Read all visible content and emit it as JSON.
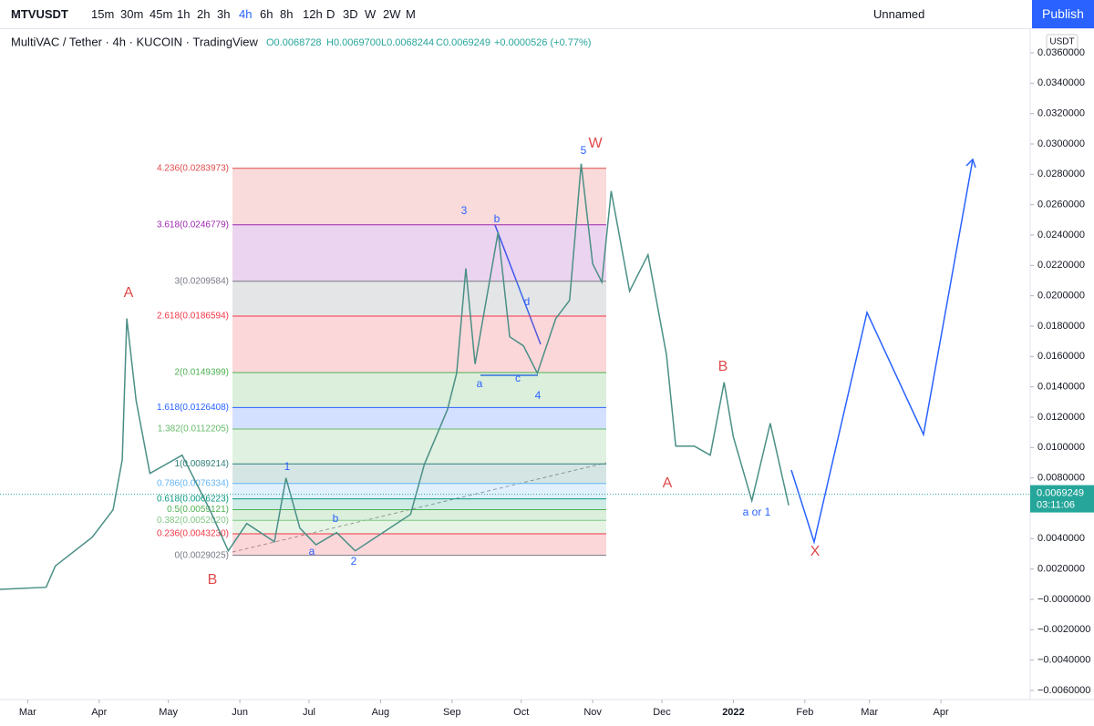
{
  "toolbar": {
    "symbol": "MTVUSDT",
    "intervals": [
      "15m",
      "30m",
      "45m",
      "1h",
      "2h",
      "3h",
      "4h",
      "6h",
      "8h",
      "12h",
      "D",
      "3D",
      "W",
      "2W",
      "M"
    ],
    "active_interval": 6,
    "layout_name": "Unnamed",
    "publish": "Publish"
  },
  "chart_data": {
    "type": "line",
    "legend": {
      "title": "MultiVAC / Tether · 4h · KUCOIN · TradingView",
      "open": "O0.0068728",
      "high": "H0.0069700",
      "low": "L0.0068244",
      "close": "C0.0069249",
      "change": "+0.0000526 (+0.77%)"
    },
    "currency": "USDT",
    "last_price": {
      "value": 0.0069249,
      "label": "0.0069249"
    },
    "countdown": "03:11:06",
    "series": [
      {
        "name": "MTVUSDT",
        "color": "#4a8f86",
        "x": [
          -12,
          8,
          12,
          28,
          37,
          41,
          43,
          47,
          53,
          67,
          79,
          87,
          95,
          107,
          112,
          118,
          125,
          134,
          142,
          154,
          166,
          172,
          182,
          186,
          190,
          194,
          204,
          209,
          215,
          221,
          229,
          235,
          240,
          245,
          249,
          253,
          261,
          269,
          277,
          281,
          289,
          296,
          302,
          306,
          314,
          322,
          330
        ],
        "values": [
          0.00066,
          0.0008,
          0.0022,
          0.0041,
          0.0059,
          0.0092,
          0.0185,
          0.0131,
          0.0083,
          0.0095,
          0.0059,
          0.0032,
          0.005,
          0.0038,
          0.008,
          0.0047,
          0.0036,
          0.0044,
          0.0032,
          0.0044,
          0.0056,
          0.0089,
          0.0125,
          0.0149,
          0.0218,
          0.0155,
          0.0242,
          0.0173,
          0.0167,
          0.0149,
          0.0185,
          0.0197,
          0.0287,
          0.0221,
          0.0209,
          0.0269,
          0.0203,
          0.0227,
          0.0161,
          0.0101,
          0.0101,
          0.0095,
          0.0143,
          0.0107,
          0.0065,
          0.0116,
          0.0062
        ]
      }
    ],
    "xlim": [
      -12,
      434.7
    ],
    "xticks": [
      {
        "value": 0,
        "label": "Mar"
      },
      {
        "value": 31,
        "label": "Apr"
      },
      {
        "value": 61,
        "label": "May"
      },
      {
        "value": 92,
        "label": "Jun"
      },
      {
        "value": 122,
        "label": "Jul"
      },
      {
        "value": 153,
        "label": "Aug"
      },
      {
        "value": 184,
        "label": "Sep"
      },
      {
        "value": 214,
        "label": "Oct"
      },
      {
        "value": 245,
        "label": "Nov"
      },
      {
        "value": 275,
        "label": "Dec"
      },
      {
        "value": 306,
        "label": "2022"
      },
      {
        "value": 337,
        "label": "Feb"
      },
      {
        "value": 365,
        "label": "Mar"
      },
      {
        "value": 396,
        "label": "Apr"
      }
    ],
    "ylim": [
      -0.00672,
      0.03738
    ],
    "yticks": [
      {
        "value": 0.036,
        "label": "0.0360000"
      },
      {
        "value": 0.034,
        "label": "0.0340000"
      },
      {
        "value": 0.032,
        "label": "0.0320000"
      },
      {
        "value": 0.03,
        "label": "0.0300000"
      },
      {
        "value": 0.028,
        "label": "0.0280000"
      },
      {
        "value": 0.026,
        "label": "0.0260000"
      },
      {
        "value": 0.024,
        "label": "0.0240000"
      },
      {
        "value": 0.022,
        "label": "0.0220000"
      },
      {
        "value": 0.02,
        "label": "0.0200000"
      },
      {
        "value": 0.018,
        "label": "0.0180000"
      },
      {
        "value": 0.016,
        "label": "0.0160000"
      },
      {
        "value": 0.014,
        "label": "0.0140000"
      },
      {
        "value": 0.012,
        "label": "0.0120000"
      },
      {
        "value": 0.01,
        "label": "0.0100000"
      },
      {
        "value": 0.008,
        "label": "0.0080000"
      },
      {
        "value": 0.006,
        "label": "0.0060000"
      },
      {
        "value": 0.004,
        "label": "0.0040000"
      },
      {
        "value": 0.002,
        "label": "0.0020000"
      },
      {
        "value": 0,
        "label": "−0.0000000"
      },
      {
        "value": -0.002,
        "label": "−0.0020000"
      },
      {
        "value": -0.004,
        "label": "−0.0040000"
      },
      {
        "value": -0.006,
        "label": "−0.0060000"
      }
    ],
    "fib_levels": [
      {
        "value": 0.0283973,
        "label": "4.236(0.0283973)",
        "color": "#e04a4a"
      },
      {
        "value": 0.0246779,
        "label": "3.618(0.0246779)",
        "color": "#9c27b0"
      },
      {
        "value": 0.0209584,
        "label": "3(0.0209584)",
        "color": "#787b86"
      },
      {
        "value": 0.0186594,
        "label": "2.618(0.0186594)",
        "color": "#f23645"
      },
      {
        "value": 0.0149399,
        "label": "2(0.0149399)",
        "color": "#4caf50"
      },
      {
        "value": 0.0126408,
        "label": "1.618(0.0126408)",
        "color": "#2962ff"
      },
      {
        "value": 0.0112205,
        "label": "1.382(0.0112205)",
        "color": "#66bb6a"
      },
      {
        "value": 0.0089214,
        "label": "1(0.0089214)",
        "color": "#2f7f7a"
      },
      {
        "value": 0.0076334,
        "label": "0.786(0.0076334)",
        "color": "#64b5f6"
      },
      {
        "value": 0.0066223,
        "label": "0.618(0.0066223)",
        "color": "#089981"
      },
      {
        "value": 0.0059121,
        "label": "0.5(0.0059121)",
        "color": "#4caf50"
      },
      {
        "value": 0.005202,
        "label": "0.382(0.0052020)",
        "color": "#81c784"
      },
      {
        "value": 0.004323,
        "label": "0.236(0.0043230)",
        "color": "#f23645"
      },
      {
        "value": 0.0029025,
        "label": "0(0.0029025)",
        "color": "#787b86"
      }
    ],
    "annotations": [
      {
        "text": "A",
        "color": "#e04a4a"
      },
      {
        "text": "B",
        "color": "#e04a4a"
      },
      {
        "text": "1",
        "color": "#2962ff"
      },
      {
        "text": "a",
        "color": "#2962ff"
      },
      {
        "text": "b",
        "color": "#2962ff"
      },
      {
        "text": "2",
        "color": "#2962ff"
      },
      {
        "text": "3",
        "color": "#2962ff"
      },
      {
        "text": "b",
        "color": "#2962ff"
      },
      {
        "text": "d",
        "color": "#2962ff"
      },
      {
        "text": "a",
        "color": "#2962ff"
      },
      {
        "text": "c",
        "color": "#2962ff"
      },
      {
        "text": "4",
        "color": "#2962ff"
      },
      {
        "text": "5",
        "color": "#2962ff"
      },
      {
        "text": "W",
        "color": "#e04a4a"
      },
      {
        "text": "A",
        "color": "#e04a4a"
      },
      {
        "text": "B",
        "color": "#e04a4a"
      },
      {
        "text": "a or 1",
        "color": "#2962ff"
      },
      {
        "text": "X",
        "color": "#e04a4a"
      }
    ]
  }
}
